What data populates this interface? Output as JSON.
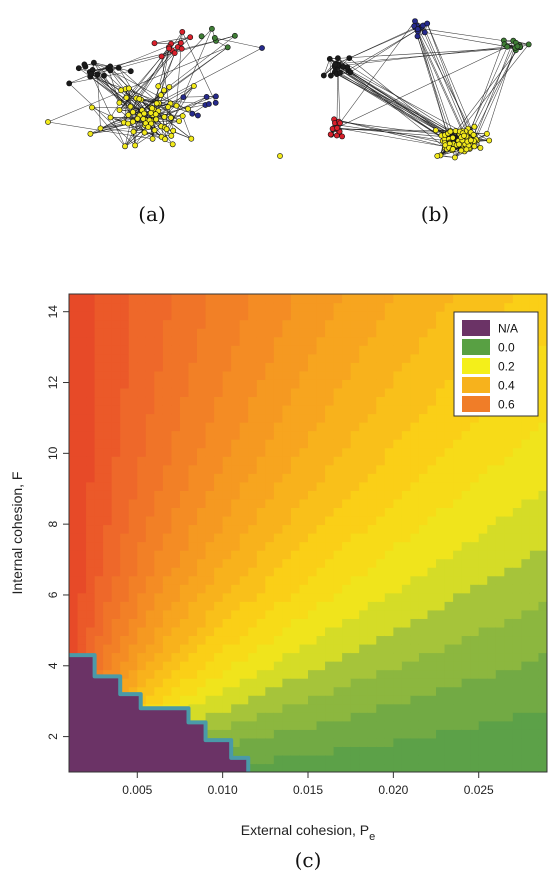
{
  "panels": {
    "a": {
      "caption": "(a)"
    },
    "b": {
      "caption": "(b)"
    },
    "c": {
      "caption": "(c)"
    }
  },
  "network_colors": {
    "yellow": "#f2ea1b",
    "red": "#d9202b",
    "black": "#1a1a1a",
    "blue": "#262a8c",
    "green": "#3f7d35"
  },
  "chart_data": {
    "type": "heatmap",
    "title": "",
    "xlabel_main": "External cohesion, P",
    "xlabel_sub": "e",
    "ylabel": "Internal cohesion, F",
    "xlim": [
      0.001,
      0.029
    ],
    "ylim": [
      1,
      14.5
    ],
    "x_ticks": [
      0.005,
      0.01,
      0.015,
      0.02,
      0.025
    ],
    "x_tick_labels": [
      "0.005",
      "0.010",
      "0.015",
      "0.020",
      "0.025"
    ],
    "y_ticks": [
      2,
      4,
      6,
      8,
      10,
      12,
      14
    ],
    "y_tick_labels": [
      "2",
      "4",
      "6",
      "8",
      "10",
      "12",
      "14"
    ],
    "legend_position": "top-right",
    "legend": [
      {
        "label": "N/A",
        "color": "#6b3366"
      },
      {
        "label": "0.0",
        "color": "#58a043"
      },
      {
        "label": "0.2",
        "color": "#f4ef1a"
      },
      {
        "label": "0.4",
        "color": "#f7b21c"
      },
      {
        "label": "0.6",
        "color": "#f07d28"
      }
    ],
    "na_boundary": [
      [
        0.001,
        4.3
      ],
      [
        0.0025,
        4.3
      ],
      [
        0.0025,
        3.7
      ],
      [
        0.004,
        3.7
      ],
      [
        0.004,
        3.2
      ],
      [
        0.0052,
        3.2
      ],
      [
        0.0052,
        2.8
      ],
      [
        0.008,
        2.8
      ],
      [
        0.008,
        2.4
      ],
      [
        0.009,
        2.4
      ],
      [
        0.009,
        1.9
      ],
      [
        0.0105,
        1.9
      ],
      [
        0.0105,
        1.4
      ],
      [
        0.0115,
        1.4
      ],
      [
        0.0115,
        1.0
      ]
    ],
    "value_model": "value ≈ 0.75 at small P_e / high F, decreasing toward ≈ 0.1 at P_e = 0.029, F = 1"
  }
}
